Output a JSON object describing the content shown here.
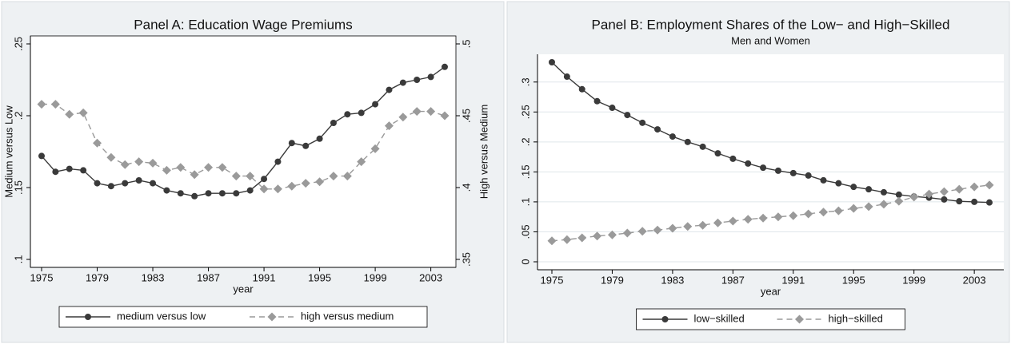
{
  "chart_data": [
    {
      "type": "line",
      "title": "Panel A: Education Wage Premiums",
      "x_label": "year",
      "y_label": "Medium versus Low",
      "y2_label": "High versus Medium",
      "x": [
        1975,
        1976,
        1977,
        1978,
        1979,
        1980,
        1981,
        1982,
        1983,
        1984,
        1985,
        1986,
        1987,
        1988,
        1989,
        1990,
        1991,
        1992,
        1993,
        1994,
        1995,
        1996,
        1997,
        1998,
        1999,
        2000,
        2001,
        2002,
        2003,
        2004
      ],
      "xlim": [
        1975,
        2004
      ],
      "xticks": [
        1975,
        1979,
        1983,
        1987,
        1991,
        1995,
        1999,
        2003
      ],
      "ylim": [
        0.1,
        0.25
      ],
      "yticks": [
        {
          "value": 0.1,
          "label": ".1"
        },
        {
          "value": 0.15,
          "label": ".15"
        },
        {
          "value": 0.2,
          "label": ".2"
        },
        {
          "value": 0.25,
          "label": ".25"
        }
      ],
      "y2lim": [
        0.35,
        0.5
      ],
      "y2ticks": [
        {
          "value": 0.35,
          "label": ".35"
        },
        {
          "value": 0.4,
          "label": ".4"
        },
        {
          "value": 0.45,
          "label": ".45"
        },
        {
          "value": 0.5,
          "label": ".5"
        }
      ],
      "grid": false,
      "legend": "bottom",
      "series": [
        {
          "name": "medium versus low",
          "color": "#3a3a3a",
          "line_style": "solid",
          "marker": "circle",
          "values": [
            0.172,
            0.161,
            0.163,
            0.162,
            0.153,
            0.151,
            0.153,
            0.155,
            0.153,
            0.148,
            0.146,
            0.144,
            0.146,
            0.146,
            0.146,
            0.148,
            0.156,
            0.168,
            0.181,
            0.179,
            0.184,
            0.195,
            0.201,
            0.202,
            0.208,
            0.218,
            0.223,
            0.225,
            0.227,
            0.234
          ]
        },
        {
          "name": "high versus medium",
          "color": "#9a9a9a",
          "line_style": "dashed",
          "marker": "diamond",
          "axis": "y2",
          "values": [
            0.458,
            0.458,
            0.451,
            0.452,
            0.431,
            0.421,
            0.416,
            0.418,
            0.417,
            0.412,
            0.414,
            0.409,
            0.414,
            0.414,
            0.408,
            0.408,
            0.399,
            0.399,
            0.401,
            0.403,
            0.404,
            0.408,
            0.408,
            0.418,
            0.427,
            0.443,
            0.449,
            0.453,
            0.453,
            0.45
          ]
        }
      ]
    },
    {
      "type": "line",
      "title": "Panel B: Employment Shares of the Low− and High−Skilled",
      "subtitle": "Men and Women",
      "x_label": "year",
      "x": [
        1975,
        1976,
        1977,
        1978,
        1979,
        1980,
        1981,
        1982,
        1983,
        1984,
        1985,
        1986,
        1987,
        1988,
        1989,
        1990,
        1991,
        1992,
        1993,
        1994,
        1995,
        1996,
        1997,
        1998,
        1999,
        2000,
        2001,
        2002,
        2003,
        2004
      ],
      "xlim": [
        1975,
        2004
      ],
      "xticks": [
        1975,
        1979,
        1983,
        1987,
        1991,
        1995,
        1999,
        2003
      ],
      "ylim": [
        0,
        0.333
      ],
      "yticks": [
        0,
        {
          "value": 0.05,
          "label": ".05"
        },
        {
          "value": 0.1,
          "label": ".1"
        },
        {
          "value": 0.15,
          "label": ".15"
        },
        {
          "value": 0.2,
          "label": ".2"
        },
        {
          "value": 0.25,
          "label": ".25"
        },
        {
          "value": 0.3,
          "label": ".3"
        }
      ],
      "grid": true,
      "legend": "bottom",
      "series": [
        {
          "name": "low−skilled",
          "color": "#3a3a3a",
          "line_style": "solid",
          "marker": "circle",
          "values": [
            0.333,
            0.309,
            0.288,
            0.268,
            0.257,
            0.245,
            0.232,
            0.221,
            0.209,
            0.2,
            0.192,
            0.181,
            0.172,
            0.164,
            0.157,
            0.152,
            0.148,
            0.144,
            0.136,
            0.131,
            0.125,
            0.121,
            0.116,
            0.112,
            0.109,
            0.107,
            0.104,
            0.101,
            0.1,
            0.099
          ]
        },
        {
          "name": "high−skilled",
          "color": "#9a9a9a",
          "line_style": "dashed",
          "marker": "diamond",
          "values": [
            0.035,
            0.037,
            0.04,
            0.043,
            0.045,
            0.048,
            0.051,
            0.053,
            0.056,
            0.059,
            0.061,
            0.065,
            0.068,
            0.071,
            0.073,
            0.075,
            0.077,
            0.08,
            0.083,
            0.085,
            0.089,
            0.092,
            0.096,
            0.101,
            0.108,
            0.113,
            0.117,
            0.121,
            0.125,
            0.128
          ]
        }
      ]
    }
  ]
}
